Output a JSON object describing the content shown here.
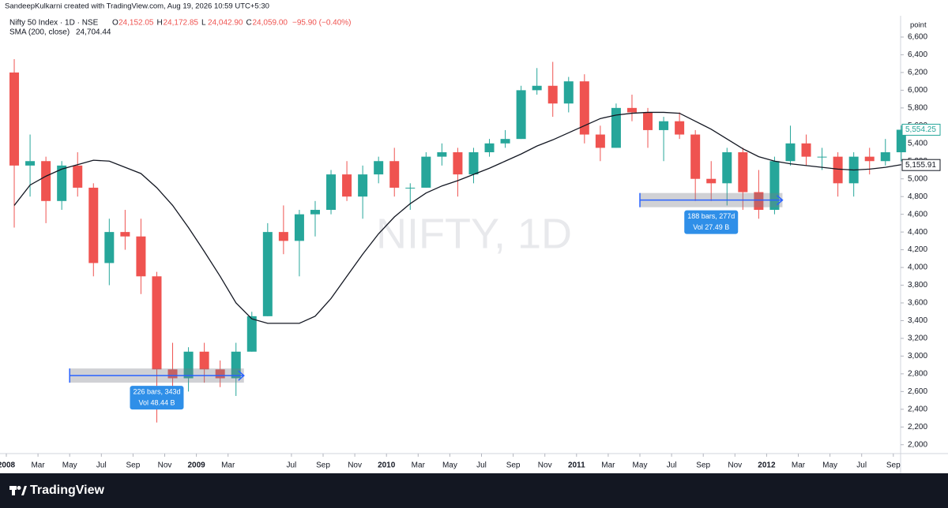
{
  "header": {
    "author_line": "SandeepKulkarni created with TradingView.com, Aug 19, 2026 10:59 UTC+5:30",
    "ohlc": [
      {
        "key": "O",
        "value": "24,152.05"
      },
      {
        "key": "H",
        "value": "24,172.85"
      },
      {
        "key": "L",
        "value": "24,042.90"
      },
      {
        "key": "C",
        "value": "24,059.00"
      }
    ],
    "change": "−95.90 (−0.40%)",
    "indicator_value": "24,704.44"
  },
  "watermark": "NIFTY, 1D",
  "footer": "TradingView",
  "chart_data": {
    "type": "candlestick",
    "y_unit": "point",
    "categories": [
      "2008-01",
      "2008-02",
      "2008-03",
      "2008-04",
      "2008-05",
      "2008-06",
      "2008-07",
      "2008-08",
      "2008-09",
      "2008-10",
      "2008-11",
      "2008-12",
      "2009-01",
      "2009-02",
      "2009-03",
      "2009-04",
      "2009-05",
      "2009-06",
      "2009-07",
      "2009-08",
      "2009-09",
      "2009-10",
      "2009-11",
      "2009-12",
      "2010-01",
      "2010-02",
      "2010-03",
      "2010-04",
      "2010-05",
      "2010-06",
      "2010-07",
      "2010-08",
      "2010-09",
      "2010-10",
      "2010-11",
      "2010-12",
      "2011-01",
      "2011-02",
      "2011-03",
      "2011-04",
      "2011-05",
      "2011-06",
      "2011-07",
      "2011-08",
      "2011-09",
      "2011-10",
      "2011-11",
      "2011-12",
      "2012-01",
      "2012-02",
      "2012-03",
      "2012-04",
      "2012-05",
      "2012-06",
      "2012-07",
      "2012-08",
      "2012-09"
    ],
    "series": [
      {
        "name": "Nifty 50 Index · 1D · NSE",
        "up_color": "#26a69a",
        "down_color": "#ef5350",
        "open": [
          6200,
          5150,
          5200,
          4750,
          5150,
          4900,
          4050,
          4400,
          4350,
          3900,
          2850,
          2750,
          3050,
          2850,
          2750,
          3050,
          3450,
          4400,
          4300,
          4600,
          4650,
          5050,
          4800,
          5050,
          5200,
          4900,
          4900,
          5250,
          5300,
          5050,
          5300,
          5400,
          5450,
          6000,
          6050,
          5850,
          6100,
          5500,
          5350,
          5800,
          5750,
          5550,
          5650,
          5500,
          5000,
          4950,
          5300,
          4850,
          4650,
          5200,
          5400,
          5250,
          5250,
          4950,
          5250,
          5200,
          5300
        ],
        "high": [
          6350,
          5500,
          5250,
          5200,
          5300,
          4950,
          4550,
          4650,
          4550,
          3950,
          3150,
          3100,
          3150,
          2950,
          3150,
          3500,
          4500,
          4700,
          4650,
          4750,
          5100,
          5200,
          5150,
          5250,
          5350,
          4950,
          5300,
          5400,
          5350,
          5350,
          5450,
          5550,
          6050,
          6250,
          6320,
          6150,
          6180,
          5600,
          5850,
          5950,
          5800,
          5700,
          5750,
          5550,
          5200,
          5350,
          5350,
          5100,
          5250,
          5600,
          5500,
          5350,
          5300,
          5300,
          5350,
          5450,
          5600
        ],
        "low": [
          4450,
          4800,
          4500,
          4650,
          4800,
          3900,
          3800,
          4200,
          3700,
          2250,
          2500,
          2600,
          2700,
          2650,
          2550,
          3050,
          3450,
          4150,
          3900,
          4350,
          4600,
          4750,
          4550,
          4950,
          4800,
          4650,
          4900,
          5150,
          4800,
          4950,
          5250,
          5350,
          5450,
          5950,
          5700,
          5750,
          5400,
          5200,
          5350,
          5650,
          5350,
          5200,
          5450,
          4750,
          4750,
          4700,
          4650,
          4550,
          4600,
          5150,
          5150,
          5100,
          4800,
          4800,
          5050,
          5150,
          5200
        ],
        "close": [
          5150,
          5200,
          4750,
          5150,
          4900,
          4050,
          4400,
          4350,
          3900,
          2850,
          2750,
          3050,
          2850,
          2750,
          3050,
          3450,
          4400,
          4300,
          4600,
          4650,
          5050,
          4800,
          5050,
          5200,
          4900,
          4900,
          5250,
          5300,
          5050,
          5300,
          5400,
          5450,
          6000,
          6050,
          5850,
          6100,
          5500,
          5350,
          5800,
          5750,
          5550,
          5650,
          5500,
          5000,
          4950,
          5300,
          4850,
          4650,
          5200,
          5400,
          5250,
          5250,
          4950,
          5250,
          5200,
          5300,
          5554
        ]
      },
      {
        "name": "SMA (200, close)",
        "color": "#131722",
        "values": [
          4700,
          4930,
          5030,
          5110,
          5160,
          5210,
          5200,
          5130,
          5060,
          4900,
          4700,
          4450,
          4180,
          3900,
          3600,
          3420,
          3370,
          3370,
          3370,
          3450,
          3650,
          3900,
          4150,
          4380,
          4570,
          4720,
          4840,
          4920,
          4980,
          5050,
          5120,
          5200,
          5280,
          5370,
          5440,
          5520,
          5600,
          5680,
          5720,
          5740,
          5750,
          5750,
          5740,
          5650,
          5560,
          5450,
          5340,
          5250,
          5200,
          5170,
          5150,
          5130,
          5110,
          5100,
          5110,
          5130,
          5160
        ]
      }
    ],
    "price_labels": [
      {
        "value": 5554.25,
        "label": "5,554.25",
        "color": "#26a69a"
      },
      {
        "value": 5155.91,
        "label": "5,155.91",
        "color": "#131722"
      }
    ],
    "ylim": [
      1900,
      6840
    ],
    "yticks": [
      {
        "value": 2000,
        "label": "2,000"
      },
      {
        "value": 2200,
        "label": "2,200"
      },
      {
        "value": 2400,
        "label": "2,400"
      },
      {
        "value": 2600,
        "label": "2,600"
      },
      {
        "value": 2800,
        "label": "2,800"
      },
      {
        "value": 3000,
        "label": "3,000"
      },
      {
        "value": 3200,
        "label": "3,200"
      },
      {
        "value": 3400,
        "label": "3,400"
      },
      {
        "value": 3600,
        "label": "3,600"
      },
      {
        "value": 3800,
        "label": "3,800"
      },
      {
        "value": 4000,
        "label": "4,000"
      },
      {
        "value": 4200,
        "label": "4,200"
      },
      {
        "value": 4400,
        "label": "4,400"
      },
      {
        "value": 4600,
        "label": "4,600"
      },
      {
        "value": 4800,
        "label": "4,800"
      },
      {
        "value": 5000,
        "label": "5,000"
      },
      {
        "value": 5200,
        "label": "5,200"
      },
      {
        "value": 5400,
        "label": "5,400"
      },
      {
        "value": 5600,
        "label": "5,600"
      },
      {
        "value": 5800,
        "label": "5,800"
      },
      {
        "value": 6000,
        "label": "6,000"
      },
      {
        "value": 6200,
        "label": "6,200"
      },
      {
        "value": 6400,
        "label": "6,400"
      },
      {
        "value": 6600,
        "label": "6,600"
      }
    ],
    "xticks": [
      {
        "value": "2008-01",
        "label": "2008"
      },
      {
        "value": "2008-03",
        "label": "Mar"
      },
      {
        "value": "2008-05",
        "label": "May"
      },
      {
        "value": "2008-07",
        "label": "Jul"
      },
      {
        "value": "2008-09",
        "label": "Sep"
      },
      {
        "value": "2008-11",
        "label": "Nov"
      },
      {
        "value": "2009-01",
        "label": "2009"
      },
      {
        "value": "2009-03",
        "label": "Mar"
      },
      {
        "value": "2009-07",
        "label": "Jul"
      },
      {
        "value": "2009-09",
        "label": "Sep"
      },
      {
        "value": "2009-11",
        "label": "Nov"
      },
      {
        "value": "2010-01",
        "label": "2010"
      },
      {
        "value": "2010-03",
        "label": "Mar"
      },
      {
        "value": "2010-05",
        "label": "May"
      },
      {
        "value": "2010-07",
        "label": "Jul"
      },
      {
        "value": "2010-09",
        "label": "Sep"
      },
      {
        "value": "2010-11",
        "label": "Nov"
      },
      {
        "value": "2011-01",
        "label": "2011"
      },
      {
        "value": "2011-03",
        "label": "Mar"
      },
      {
        "value": "2011-05",
        "label": "May"
      },
      {
        "value": "2011-07",
        "label": "Jul"
      },
      {
        "value": "2011-09",
        "label": "Sep"
      },
      {
        "value": "2011-11",
        "label": "Nov"
      },
      {
        "value": "2012-01",
        "label": "2012"
      },
      {
        "value": "2012-03",
        "label": "Mar"
      },
      {
        "value": "2012-05",
        "label": "May"
      },
      {
        "value": "2012-07",
        "label": "Jul"
      },
      {
        "value": "2012-09",
        "label": "Sep"
      }
    ],
    "measurements": [
      {
        "from": "2008-05",
        "to": "2009-04",
        "price": 2780,
        "lines": [
          "226 bars, 343d",
          "Vol 48.44 B"
        ]
      },
      {
        "from": "2011-05",
        "to": "2012-02",
        "price": 4760,
        "lines": [
          "188 bars, 277d",
          "Vol 27.49 B"
        ]
      }
    ]
  }
}
